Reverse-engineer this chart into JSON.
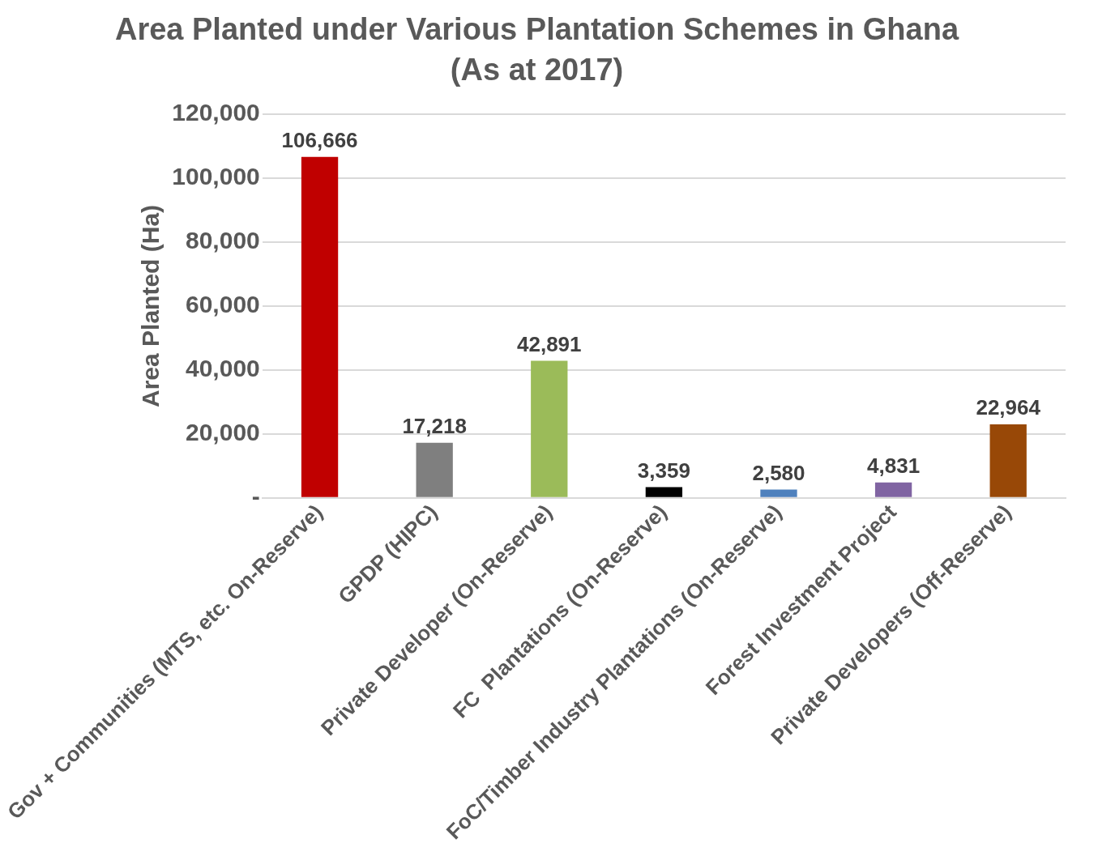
{
  "chart_data": {
    "type": "bar",
    "title": "Area Planted under Various Plantation Schemes in Ghana",
    "subtitle": "(As at 2017)",
    "ylabel": "Area Planted (Ha)",
    "categories": [
      "Gov + Communities (MTS, etc. On-Reserve)",
      "GPDP (HIPC)",
      "Private Developer (On-Reserve)",
      "FC  Plantations (On-Reserve)",
      "FoC/Timber Industry Plantations (On-Reserve)",
      "Forest Investment Project",
      "Private Developers (Off-Reserve)"
    ],
    "values": [
      106666,
      17218,
      42891,
      3359,
      2580,
      4831,
      22964
    ],
    "colors": [
      "#c00000",
      "#7f7f7f",
      "#9bbb59",
      "#000000",
      "#4f81bd",
      "#8064a2",
      "#984807"
    ],
    "value_labels": [
      "106,666",
      "17,218",
      "42,891",
      "3,359",
      "2,580",
      "4,831",
      "22,964"
    ],
    "ylim": [
      0,
      120000
    ],
    "yticks": [
      {
        "value": 0,
        "label": "-"
      },
      {
        "value": 20000,
        "label": "20,000"
      },
      {
        "value": 40000,
        "label": "40,000"
      },
      {
        "value": 60000,
        "label": "60,000"
      },
      {
        "value": 80000,
        "label": "80,000"
      },
      {
        "value": 100000,
        "label": "100,000"
      },
      {
        "value": 120000,
        "label": "120,000"
      }
    ],
    "grid": "y",
    "legend": false
  }
}
